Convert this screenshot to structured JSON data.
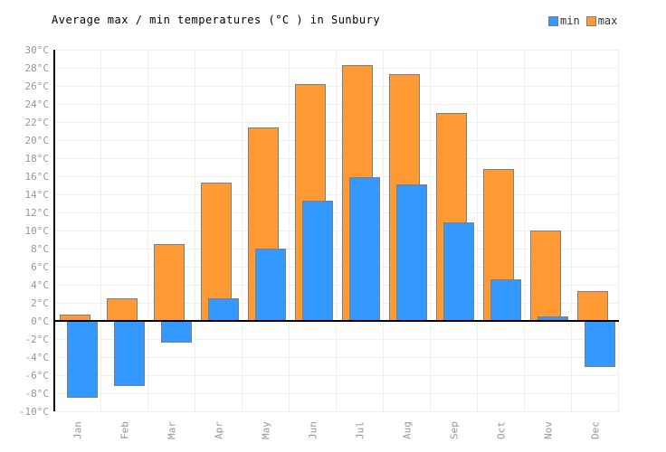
{
  "title": "Average max / min temperatures (°C ) in Sunbury",
  "legend": [
    {
      "label": "min",
      "color": "#3399FF"
    },
    {
      "label": "max",
      "color": "#FF9933"
    }
  ],
  "colors": {
    "min_bar": "#3399FF",
    "max_bar": "#FF9933",
    "bar_border": "#7f7f7f",
    "grid": "#f0f0f0",
    "axis": "#000000",
    "tick_text": "#969696"
  },
  "chart_data": {
    "type": "bar",
    "title": "Average max / min temperatures (°C ) in Sunbury",
    "categories": [
      "Jan",
      "Feb",
      "Mar",
      "Apr",
      "May",
      "Jun",
      "Jul",
      "Aug",
      "Sep",
      "Oct",
      "Nov",
      "Dec"
    ],
    "series": [
      {
        "name": "min",
        "color": "#3399FF",
        "values": [
          -8.5,
          -7.2,
          -2.4,
          2.5,
          8.0,
          13.3,
          15.9,
          15.1,
          10.9,
          4.6,
          0.5,
          -5.1
        ]
      },
      {
        "name": "max",
        "color": "#FF9933",
        "values": [
          0.7,
          2.5,
          8.5,
          15.3,
          21.4,
          26.2,
          28.3,
          27.3,
          23.0,
          16.8,
          10.0,
          3.3
        ]
      }
    ],
    "xlabel": "",
    "ylabel": "",
    "ylim": [
      -10,
      30
    ],
    "y_tick_step": 2,
    "y_ticks": [
      "30°C",
      "28°C",
      "26°C",
      "24°C",
      "22°C",
      "20°C",
      "18°C",
      "16°C",
      "14°C",
      "12°C",
      "10°C",
      "8°C",
      "6°C",
      "4°C",
      "2°C",
      "0°C",
      "-2°C",
      "-4°C",
      "-6°C",
      "-8°C",
      "-10°C"
    ],
    "grid": true,
    "legend_position": "top-right"
  }
}
